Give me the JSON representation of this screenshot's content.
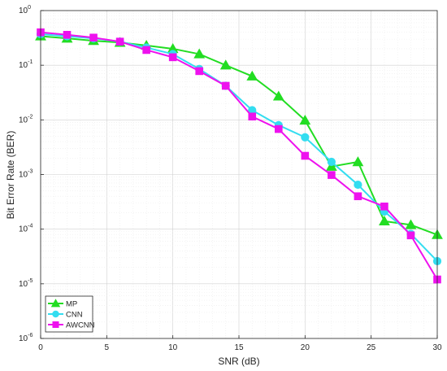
{
  "chart_data": {
    "type": "line",
    "title": "",
    "xlabel": "SNR (dB)",
    "ylabel": "Bit Error Rate (BER)",
    "xlim": [
      0,
      30
    ],
    "ylim": [
      1e-06,
      1
    ],
    "yscale": "log",
    "grid": true,
    "legend_position": "bottom-left",
    "x_ticks": [
      0,
      5,
      10,
      15,
      20,
      25,
      30
    ],
    "y_ticks": [
      {
        "exp": 0,
        "value": 1
      },
      {
        "exp": -1,
        "value": 0.1
      },
      {
        "exp": -2,
        "value": 0.01
      },
      {
        "exp": -3,
        "value": 0.001
      },
      {
        "exp": -4,
        "value": 0.0001
      },
      {
        "exp": -5,
        "value": 1e-05
      },
      {
        "exp": -6,
        "value": 1e-06
      }
    ],
    "y_tick_base": "10",
    "x": [
      0,
      2,
      4,
      6,
      8,
      10,
      12,
      14,
      16,
      18,
      20,
      22,
      24,
      26,
      28,
      30
    ],
    "series": [
      {
        "name": "MP",
        "color": "#22dd22",
        "marker": "triangle",
        "values": [
          0.34,
          0.31,
          0.28,
          0.26,
          0.23,
          0.2,
          0.16,
          0.1,
          0.063,
          0.027,
          0.0098,
          0.0014,
          0.0017,
          0.00014,
          0.00012,
          7.9e-05
        ]
      },
      {
        "name": "CNN",
        "color": "#33ddf0",
        "marker": "circle",
        "values": [
          0.37,
          0.34,
          0.31,
          0.27,
          0.21,
          0.16,
          0.085,
          0.042,
          0.015,
          0.008,
          0.0048,
          0.0017,
          0.00065,
          0.00021,
          8.2e-05,
          2.6e-05
        ]
      },
      {
        "name": "AWCNN",
        "color": "#ee11ee",
        "marker": "square",
        "values": [
          0.4,
          0.36,
          0.32,
          0.27,
          0.19,
          0.14,
          0.078,
          0.042,
          0.0115,
          0.0068,
          0.0022,
          0.00098,
          0.0004,
          0.00026,
          7.7e-05,
          1.2e-05
        ]
      }
    ]
  }
}
